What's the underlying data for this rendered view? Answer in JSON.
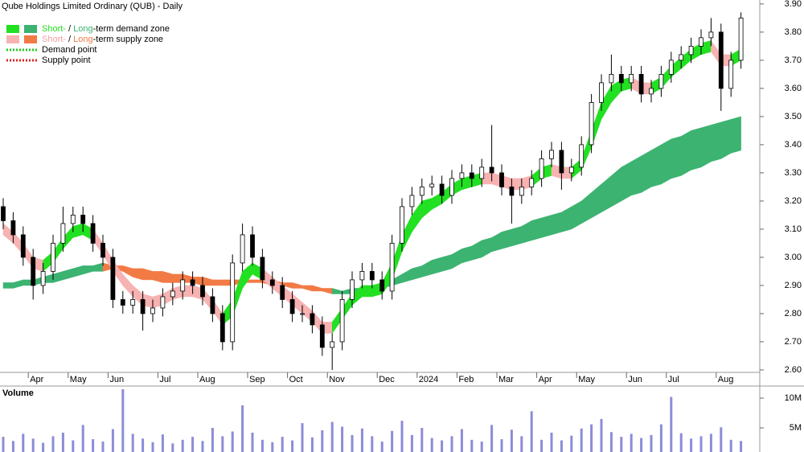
{
  "chart_data": {
    "type": "candlestick",
    "title": "Qube Holdings Limited Ordinary (QUB) - Daily",
    "legend": [
      [
        "Short-",
        " / ",
        "Long",
        "-term demand zone"
      ],
      [
        "Short-",
        " / ",
        "Long",
        "-term supply zone"
      ],
      [
        "Demand point"
      ],
      [
        "Supply point"
      ]
    ],
    "colors": {
      "short_demand": "#22e022",
      "long_demand": "#3cb371",
      "short_supply": "#f7b2b2",
      "long_supply": "#f27a45",
      "demand_point": "#22cc22",
      "supply_point": "#dd2222",
      "up": "#ffffff",
      "down": "#000000",
      "wick": "#000000"
    },
    "categories": [
      null,
      null,
      null,
      "Apr",
      null,
      null,
      null,
      "May",
      null,
      null,
      null,
      "Jun",
      null,
      null,
      null,
      null,
      "Jul",
      null,
      null,
      null,
      "Aug",
      null,
      null,
      null,
      null,
      "Sep",
      null,
      null,
      null,
      "Oct",
      null,
      null,
      null,
      "Nov",
      null,
      null,
      null,
      null,
      "Dec",
      null,
      null,
      null,
      "2024",
      null,
      null,
      null,
      "Feb",
      null,
      null,
      null,
      "Mar",
      null,
      null,
      null,
      "Apr",
      null,
      null,
      null,
      "May",
      null,
      null,
      null,
      null,
      "Jun",
      null,
      null,
      null,
      "Jul",
      null,
      null,
      null,
      null,
      "Aug",
      null,
      null
    ],
    "open": [
      3.18,
      3.13,
      3.08,
      3.0,
      2.9,
      2.95,
      3.05,
      3.12,
      3.15,
      3.12,
      3.05,
      3.0,
      2.85,
      2.83,
      2.85,
      2.8,
      2.82,
      2.86,
      2.88,
      2.92,
      2.9,
      2.86,
      2.8,
      2.7,
      2.98,
      3.08,
      3.0,
      2.92,
      2.9,
      2.85,
      2.8,
      2.8,
      2.76,
      2.68,
      2.7,
      2.85,
      2.92,
      2.95,
      2.92,
      2.88,
      3.05,
      3.18,
      3.22,
      3.25,
      3.26,
      3.22,
      3.28,
      3.3,
      3.28,
      3.32,
      3.3,
      3.25,
      3.22,
      3.25,
      3.28,
      3.35,
      3.38,
      3.3,
      3.32,
      3.4,
      3.55,
      3.62,
      3.65,
      3.62,
      3.65,
      3.58,
      3.6,
      3.65,
      3.7,
      3.72,
      3.75,
      3.78,
      3.8,
      3.6,
      3.7
    ],
    "high": [
      3.21,
      3.16,
      3.11,
      3.03,
      2.98,
      3.08,
      3.18,
      3.18,
      3.18,
      3.15,
      3.08,
      3.03,
      2.88,
      2.88,
      2.88,
      2.85,
      2.89,
      2.91,
      2.95,
      2.95,
      2.93,
      2.89,
      2.83,
      3.01,
      3.12,
      3.11,
      3.03,
      2.95,
      2.93,
      2.88,
      2.83,
      2.83,
      2.79,
      2.73,
      2.88,
      2.95,
      2.98,
      2.98,
      2.95,
      3.08,
      3.21,
      3.25,
      3.28,
      3.29,
      3.29,
      3.31,
      3.33,
      3.33,
      3.35,
      3.47,
      3.33,
      3.28,
      3.28,
      3.31,
      3.38,
      3.41,
      3.41,
      3.35,
      3.43,
      3.58,
      3.65,
      3.72,
      3.68,
      3.68,
      3.68,
      3.63,
      3.68,
      3.73,
      3.75,
      3.78,
      3.81,
      3.85,
      3.83,
      3.73,
      3.87
    ],
    "low": [
      3.1,
      3.05,
      2.97,
      2.85,
      2.87,
      2.92,
      3.02,
      3.09,
      3.09,
      3.02,
      2.97,
      2.82,
      2.8,
      2.8,
      2.74,
      2.77,
      2.79,
      2.83,
      2.85,
      2.87,
      2.83,
      2.77,
      2.67,
      2.67,
      2.95,
      2.97,
      2.89,
      2.87,
      2.82,
      2.77,
      2.77,
      2.73,
      2.65,
      2.6,
      2.67,
      2.82,
      2.89,
      2.89,
      2.85,
      2.85,
      3.02,
      3.15,
      3.19,
      3.22,
      3.19,
      3.19,
      3.25,
      3.25,
      3.25,
      3.27,
      3.22,
      3.12,
      3.19,
      3.22,
      3.25,
      3.32,
      3.24,
      3.27,
      3.29,
      3.37,
      3.52,
      3.59,
      3.59,
      3.59,
      3.55,
      3.55,
      3.57,
      3.62,
      3.67,
      3.69,
      3.72,
      3.75,
      3.52,
      3.57,
      3.67
    ],
    "close": [
      3.13,
      3.08,
      3.0,
      2.9,
      2.95,
      3.05,
      3.12,
      3.15,
      3.12,
      3.05,
      3.0,
      2.85,
      2.83,
      2.85,
      2.8,
      2.82,
      2.86,
      2.88,
      2.92,
      2.9,
      2.86,
      2.8,
      2.7,
      2.98,
      3.08,
      3.0,
      2.92,
      2.9,
      2.85,
      2.8,
      2.8,
      2.76,
      2.68,
      2.7,
      2.85,
      2.92,
      2.95,
      2.92,
      2.88,
      3.05,
      3.18,
      3.22,
      3.25,
      3.26,
      3.22,
      3.28,
      3.3,
      3.28,
      3.32,
      3.3,
      3.25,
      3.22,
      3.25,
      3.28,
      3.35,
      3.38,
      3.3,
      3.32,
      3.4,
      3.55,
      3.62,
      3.65,
      3.62,
      3.65,
      3.58,
      3.6,
      3.65,
      3.7,
      3.72,
      3.75,
      3.78,
      3.8,
      3.6,
      3.7,
      3.85
    ],
    "short_zone": {
      "upper": [
        3.12,
        3.09,
        3.05,
        3.0,
        2.99,
        3.02,
        3.07,
        3.11,
        3.12,
        3.1,
        3.05,
        2.99,
        2.94,
        2.9,
        2.87,
        2.86,
        2.87,
        2.89,
        2.9,
        2.9,
        2.89,
        2.85,
        2.8,
        2.85,
        2.95,
        2.98,
        2.96,
        2.93,
        2.9,
        2.87,
        2.84,
        2.81,
        2.77,
        2.77,
        2.82,
        2.87,
        2.9,
        2.9,
        2.91,
        2.98,
        3.08,
        3.15,
        3.2,
        3.21,
        3.23,
        3.26,
        3.28,
        3.29,
        3.3,
        3.3,
        3.29,
        3.28,
        3.28,
        3.29,
        3.32,
        3.33,
        3.32,
        3.32,
        3.35,
        3.45,
        3.55,
        3.61,
        3.63,
        3.64,
        3.62,
        3.62,
        3.64,
        3.68,
        3.71,
        3.74,
        3.76,
        3.77,
        3.72,
        3.72,
        3.74
      ],
      "lower": [
        3.08,
        3.05,
        3.01,
        2.96,
        2.95,
        2.98,
        3.03,
        3.07,
        3.08,
        3.06,
        3.01,
        2.95,
        2.9,
        2.86,
        2.83,
        2.82,
        2.83,
        2.85,
        2.86,
        2.86,
        2.85,
        2.81,
        2.76,
        2.79,
        2.89,
        2.94,
        2.92,
        2.89,
        2.86,
        2.83,
        2.8,
        2.77,
        2.73,
        2.73,
        2.78,
        2.83,
        2.86,
        2.86,
        2.87,
        2.92,
        3.02,
        3.09,
        3.14,
        3.17,
        3.19,
        3.22,
        3.24,
        3.25,
        3.26,
        3.26,
        3.25,
        3.24,
        3.24,
        3.25,
        3.28,
        3.29,
        3.28,
        3.28,
        3.31,
        3.39,
        3.49,
        3.55,
        3.59,
        3.6,
        3.58,
        3.58,
        3.6,
        3.64,
        3.67,
        3.7,
        3.72,
        3.73,
        3.68,
        3.68,
        3.7
      ],
      "demand": [
        false,
        false,
        false,
        false,
        false,
        true,
        true,
        true,
        true,
        true,
        false,
        false,
        false,
        false,
        false,
        false,
        false,
        false,
        false,
        false,
        false,
        false,
        false,
        true,
        true,
        true,
        true,
        false,
        false,
        false,
        false,
        false,
        false,
        false,
        true,
        true,
        true,
        true,
        true,
        true,
        true,
        true,
        true,
        true,
        true,
        true,
        true,
        true,
        true,
        false,
        false,
        false,
        false,
        false,
        true,
        true,
        false,
        false,
        true,
        true,
        true,
        true,
        true,
        true,
        false,
        false,
        true,
        true,
        true,
        true,
        true,
        true,
        false,
        false,
        true
      ]
    },
    "long_zone": {
      "upper": [
        2.91,
        2.91,
        2.92,
        2.92,
        2.93,
        2.94,
        2.95,
        2.96,
        2.97,
        2.97,
        2.98,
        2.97,
        2.97,
        2.96,
        2.96,
        2.95,
        2.95,
        2.94,
        2.94,
        2.93,
        2.93,
        2.92,
        2.92,
        2.92,
        2.92,
        2.92,
        2.92,
        2.92,
        2.91,
        2.91,
        2.9,
        2.9,
        2.89,
        2.89,
        2.88,
        2.89,
        2.89,
        2.9,
        2.9,
        2.92,
        2.94,
        2.96,
        2.97,
        2.99,
        3.0,
        3.01,
        3.03,
        3.04,
        3.06,
        3.07,
        3.09,
        3.1,
        3.11,
        3.13,
        3.14,
        3.15,
        3.16,
        3.18,
        3.2,
        3.23,
        3.26,
        3.29,
        3.32,
        3.34,
        3.36,
        3.38,
        3.4,
        3.42,
        3.43,
        3.45,
        3.46,
        3.47,
        3.48,
        3.49,
        3.5
      ],
      "lower": [
        2.89,
        2.89,
        2.9,
        2.9,
        2.91,
        2.91,
        2.92,
        2.93,
        2.94,
        2.95,
        2.95,
        2.96,
        2.95,
        2.93,
        2.92,
        2.92,
        2.91,
        2.91,
        2.91,
        2.91,
        2.9,
        2.9,
        2.9,
        2.9,
        2.91,
        2.91,
        2.91,
        2.9,
        2.9,
        2.89,
        2.89,
        2.88,
        2.88,
        2.87,
        2.87,
        2.87,
        2.88,
        2.88,
        2.89,
        2.9,
        2.91,
        2.92,
        2.93,
        2.94,
        2.95,
        2.96,
        2.98,
        2.99,
        3.0,
        3.02,
        3.03,
        3.04,
        3.05,
        3.06,
        3.07,
        3.08,
        3.09,
        3.1,
        3.12,
        3.14,
        3.16,
        3.18,
        3.2,
        3.22,
        3.23,
        3.25,
        3.26,
        3.28,
        3.29,
        3.31,
        3.32,
        3.34,
        3.35,
        3.37,
        3.38
      ],
      "demand": [
        true,
        true,
        true,
        true,
        true,
        true,
        true,
        true,
        true,
        true,
        true,
        false,
        false,
        false,
        false,
        false,
        false,
        false,
        false,
        false,
        false,
        false,
        false,
        false,
        false,
        false,
        false,
        false,
        false,
        false,
        false,
        false,
        false,
        false,
        true,
        true,
        true,
        true,
        true,
        true,
        true,
        true,
        true,
        true,
        true,
        true,
        true,
        true,
        true,
        true,
        true,
        true,
        true,
        true,
        true,
        true,
        true,
        true,
        true,
        true,
        true,
        true,
        true,
        true,
        true,
        true,
        true,
        true,
        true,
        true,
        true,
        true,
        true,
        true,
        true
      ]
    },
    "ylim": [
      2.577,
      3.914
    ],
    "yticks": [
      {
        "value": 2.6,
        "label": "2.60"
      },
      {
        "value": 2.7,
        "label": "2.70"
      },
      {
        "value": 2.8,
        "label": "2.80"
      },
      {
        "value": 2.9,
        "label": "2.90"
      },
      {
        "value": 3.0,
        "label": "3.00"
      },
      {
        "value": 3.1,
        "label": "3.10"
      },
      {
        "value": 3.2,
        "label": "3.20"
      },
      {
        "value": 3.3,
        "label": "3.30"
      },
      {
        "value": 3.4,
        "label": "3.40"
      },
      {
        "value": 3.5,
        "label": "3.50"
      },
      {
        "value": 3.6,
        "label": "3.60"
      },
      {
        "value": 3.7,
        "label": "3.70"
      },
      {
        "value": 3.8,
        "label": "3.80"
      },
      {
        "value": 3.9,
        "label": "3.90"
      }
    ],
    "volume": {
      "label": "Volume",
      "color": "#8c8cd8",
      "values": [
        3500000,
        2800000,
        4000000,
        3200000,
        2500000,
        3600000,
        4200000,
        2900000,
        5500000,
        3100000,
        2700000,
        4800000,
        11500000,
        4000000,
        3200000,
        2600000,
        3900000,
        2400000,
        3000000,
        3500000,
        2800000,
        5000000,
        3600000,
        4400000,
        8800000,
        4200000,
        3000000,
        2600000,
        3500000,
        2900000,
        5800000,
        3400000,
        4600000,
        6000000,
        5200000,
        3800000,
        4900000,
        3600000,
        2700000,
        4500000,
        6200000,
        3800000,
        5000000,
        3300000,
        2900000,
        3600000,
        4800000,
        3000000,
        2700000,
        5500000,
        3100000,
        4700000,
        3600000,
        7800000,
        3000000,
        4200000,
        2900000,
        3700000,
        4900000,
        5600000,
        6500000,
        4300000,
        3500000,
        4000000,
        3300000,
        3800000,
        5600000,
        10200000,
        4100000,
        3200000,
        3600000,
        4000000,
        5100000,
        3000000,
        2800000
      ],
      "ylim": [
        950000,
        12030000
      ],
      "yticks": [
        {
          "value": 5000000,
          "label": "5M"
        },
        {
          "value": 10000000,
          "label": "10M"
        }
      ]
    }
  }
}
